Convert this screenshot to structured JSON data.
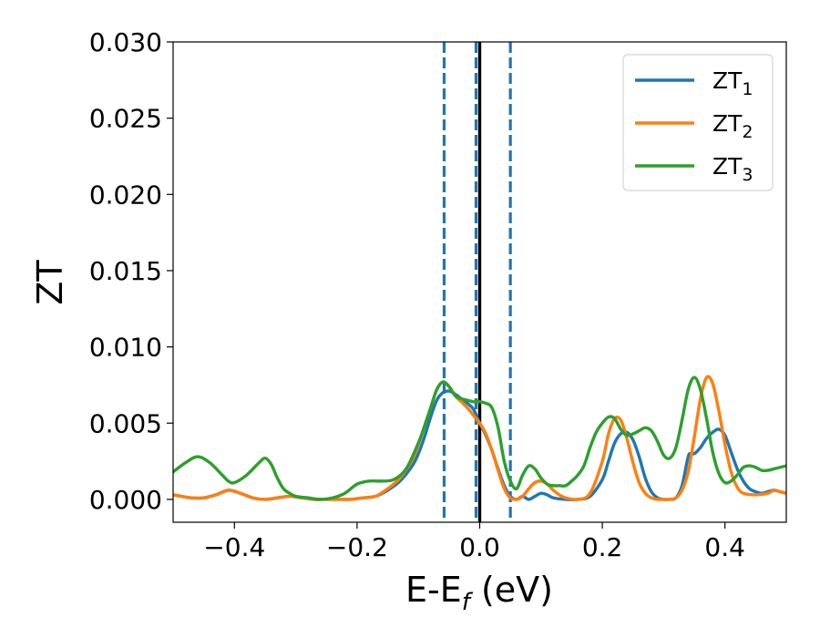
{
  "chart_data": {
    "type": "line",
    "xlabel_main": "E-E",
    "xlabel_sub": "f",
    "xlabel_unit": " (eV)",
    "ylabel": "ZT",
    "xlim": [
      -0.5,
      0.5
    ],
    "ylim": [
      -0.0015,
      0.03
    ],
    "grid": false,
    "legend_position": "top-right",
    "x_ticks": [
      -0.4,
      -0.2,
      0.0,
      0.2,
      0.4
    ],
    "x_tick_labels": [
      "−0.4",
      "−0.2",
      "0.0",
      "0.2",
      "0.4"
    ],
    "y_ticks": [
      0.0,
      0.005,
      0.01,
      0.015,
      0.02,
      0.025,
      0.03
    ],
    "y_tick_labels": [
      "0.000",
      "0.005",
      "0.010",
      "0.015",
      "0.020",
      "0.025",
      "0.030"
    ],
    "vertical_lines": [
      {
        "x": -0.058,
        "style": "dashed",
        "color": "#1f77b4"
      },
      {
        "x": -0.006,
        "style": "dashed",
        "color": "#1f77b4"
      },
      {
        "x": 0.0,
        "style": "solid",
        "color": "#000000"
      },
      {
        "x": 0.05,
        "style": "dashed",
        "color": "#1f77b4"
      }
    ],
    "series": [
      {
        "name": "ZT",
        "subscript": "1",
        "color": "#1f77b4",
        "points": [
          [
            -0.5,
            0.0003
          ],
          [
            -0.47,
            0.0001
          ],
          [
            -0.45,
            0.0001
          ],
          [
            -0.43,
            0.0003
          ],
          [
            -0.41,
            0.0006
          ],
          [
            -0.39,
            0.0004
          ],
          [
            -0.37,
            0.0001
          ],
          [
            -0.35,
            0.0
          ],
          [
            -0.33,
            0.0001
          ],
          [
            -0.31,
            0.0002
          ],
          [
            -0.29,
            0.0001
          ],
          [
            -0.27,
            0.0
          ],
          [
            -0.25,
            0.0
          ],
          [
            -0.23,
            0.0
          ],
          [
            -0.21,
            0.0
          ],
          [
            -0.19,
            0.0001
          ],
          [
            -0.17,
            0.0002
          ],
          [
            -0.15,
            0.0006
          ],
          [
            -0.13,
            0.0012
          ],
          [
            -0.11,
            0.0022
          ],
          [
            -0.1,
            0.003
          ],
          [
            -0.09,
            0.0041
          ],
          [
            -0.08,
            0.0054
          ],
          [
            -0.07,
            0.0065
          ],
          [
            -0.06,
            0.007
          ],
          [
            -0.05,
            0.0071
          ],
          [
            -0.04,
            0.0069
          ],
          [
            -0.03,
            0.0066
          ],
          [
            -0.02,
            0.0063
          ],
          [
            -0.01,
            0.0059
          ],
          [
            0.0,
            0.005
          ],
          [
            0.01,
            0.0042
          ],
          [
            0.02,
            0.0032
          ],
          [
            0.03,
            0.002
          ],
          [
            0.04,
            0.0009
          ],
          [
            0.05,
            0.0002
          ],
          [
            0.06,
            0.0
          ],
          [
            0.07,
            0.0002
          ],
          [
            0.08,
            0.0
          ],
          [
            0.09,
            0.0002
          ],
          [
            0.1,
            0.0004
          ],
          [
            0.11,
            0.0003
          ],
          [
            0.12,
            0.0001
          ],
          [
            0.14,
            0.0
          ],
          [
            0.16,
            0.0
          ],
          [
            0.18,
            0.0002
          ],
          [
            0.2,
            0.0013
          ],
          [
            0.21,
            0.0025
          ],
          [
            0.22,
            0.0037
          ],
          [
            0.23,
            0.0043
          ],
          [
            0.24,
            0.0044
          ],
          [
            0.25,
            0.0039
          ],
          [
            0.26,
            0.0028
          ],
          [
            0.27,
            0.0014
          ],
          [
            0.28,
            0.0005
          ],
          [
            0.29,
            0.0001
          ],
          [
            0.3,
            0.0
          ],
          [
            0.31,
            0.0
          ],
          [
            0.32,
            0.0001
          ],
          [
            0.33,
            0.0009
          ],
          [
            0.34,
            0.0028
          ],
          [
            0.345,
            0.003
          ],
          [
            0.35,
            0.003
          ],
          [
            0.36,
            0.0034
          ],
          [
            0.37,
            0.004
          ],
          [
            0.38,
            0.0044
          ],
          [
            0.39,
            0.0046
          ],
          [
            0.4,
            0.0042
          ],
          [
            0.41,
            0.0031
          ],
          [
            0.42,
            0.002
          ],
          [
            0.43,
            0.0012
          ],
          [
            0.44,
            0.0007
          ],
          [
            0.45,
            0.0005
          ],
          [
            0.46,
            0.0004
          ],
          [
            0.47,
            0.0005
          ],
          [
            0.48,
            0.0006
          ],
          [
            0.49,
            0.0005
          ],
          [
            0.5,
            0.0004
          ]
        ]
      },
      {
        "name": "ZT",
        "subscript": "2",
        "color": "#ff7f0e",
        "points": [
          [
            -0.5,
            0.0003
          ],
          [
            -0.47,
            0.0001
          ],
          [
            -0.45,
            0.0001
          ],
          [
            -0.43,
            0.0003
          ],
          [
            -0.41,
            0.0006
          ],
          [
            -0.39,
            0.0004
          ],
          [
            -0.37,
            0.0001
          ],
          [
            -0.35,
            0.0
          ],
          [
            -0.33,
            0.0001
          ],
          [
            -0.31,
            0.0002
          ],
          [
            -0.29,
            0.0001
          ],
          [
            -0.27,
            0.0
          ],
          [
            -0.25,
            0.0
          ],
          [
            -0.23,
            0.0
          ],
          [
            -0.21,
            0.0
          ],
          [
            -0.19,
            0.0001
          ],
          [
            -0.17,
            0.0002
          ],
          [
            -0.15,
            0.0007
          ],
          [
            -0.13,
            0.0014
          ],
          [
            -0.11,
            0.0026
          ],
          [
            -0.1,
            0.0036
          ],
          [
            -0.09,
            0.0048
          ],
          [
            -0.08,
            0.006
          ],
          [
            -0.07,
            0.0072
          ],
          [
            -0.06,
            0.0077
          ],
          [
            -0.05,
            0.0074
          ],
          [
            -0.04,
            0.0068
          ],
          [
            -0.03,
            0.0064
          ],
          [
            -0.02,
            0.006
          ],
          [
            -0.01,
            0.0055
          ],
          [
            0.0,
            0.005
          ],
          [
            0.01,
            0.0043
          ],
          [
            0.02,
            0.0032
          ],
          [
            0.03,
            0.0019
          ],
          [
            0.04,
            0.0007
          ],
          [
            0.05,
            0.0001
          ],
          [
            0.06,
            0.0
          ],
          [
            0.07,
            0.0002
          ],
          [
            0.08,
            0.0007
          ],
          [
            0.09,
            0.0011
          ],
          [
            0.1,
            0.0012
          ],
          [
            0.11,
            0.001
          ],
          [
            0.12,
            0.0006
          ],
          [
            0.13,
            0.0003
          ],
          [
            0.14,
            0.0001
          ],
          [
            0.16,
            0.0
          ],
          [
            0.18,
            0.0004
          ],
          [
            0.2,
            0.0025
          ],
          [
            0.21,
            0.0043
          ],
          [
            0.22,
            0.0053
          ],
          [
            0.23,
            0.0052
          ],
          [
            0.24,
            0.004
          ],
          [
            0.25,
            0.0024
          ],
          [
            0.26,
            0.0011
          ],
          [
            0.27,
            0.0004
          ],
          [
            0.28,
            0.0001
          ],
          [
            0.29,
            0.0
          ],
          [
            0.3,
            0.0
          ],
          [
            0.31,
            0.0
          ],
          [
            0.32,
            0.0001
          ],
          [
            0.33,
            0.0006
          ],
          [
            0.34,
            0.0018
          ],
          [
            0.35,
            0.0041
          ],
          [
            0.36,
            0.0066
          ],
          [
            0.37,
            0.008
          ],
          [
            0.38,
            0.0076
          ],
          [
            0.39,
            0.0058
          ],
          [
            0.4,
            0.0036
          ],
          [
            0.41,
            0.0018
          ],
          [
            0.42,
            0.0008
          ],
          [
            0.43,
            0.0004
          ],
          [
            0.45,
            0.0003
          ],
          [
            0.47,
            0.0004
          ],
          [
            0.48,
            0.0006
          ],
          [
            0.49,
            0.0005
          ],
          [
            0.5,
            0.0004
          ]
        ]
      },
      {
        "name": "ZT",
        "subscript": "3",
        "color": "#2ca02c",
        "points": [
          [
            -0.5,
            0.0018
          ],
          [
            -0.48,
            0.0024
          ],
          [
            -0.46,
            0.0028
          ],
          [
            -0.44,
            0.0024
          ],
          [
            -0.42,
            0.0016
          ],
          [
            -0.41,
            0.0012
          ],
          [
            -0.4,
            0.0011
          ],
          [
            -0.38,
            0.0016
          ],
          [
            -0.36,
            0.0024
          ],
          [
            -0.35,
            0.0027
          ],
          [
            -0.34,
            0.0023
          ],
          [
            -0.33,
            0.0014
          ],
          [
            -0.32,
            0.0007
          ],
          [
            -0.31,
            0.0004
          ],
          [
            -0.3,
            0.0002
          ],
          [
            -0.28,
            0.0001
          ],
          [
            -0.26,
            0.0
          ],
          [
            -0.24,
            0.0001
          ],
          [
            -0.22,
            0.0004
          ],
          [
            -0.2,
            0.001
          ],
          [
            -0.18,
            0.0012
          ],
          [
            -0.16,
            0.0012
          ],
          [
            -0.14,
            0.0013
          ],
          [
            -0.12,
            0.002
          ],
          [
            -0.1,
            0.0037
          ],
          [
            -0.09,
            0.0048
          ],
          [
            -0.08,
            0.006
          ],
          [
            -0.07,
            0.0072
          ],
          [
            -0.06,
            0.0077
          ],
          [
            -0.05,
            0.0074
          ],
          [
            -0.04,
            0.0068
          ],
          [
            -0.03,
            0.0066
          ],
          [
            -0.02,
            0.0065
          ],
          [
            -0.01,
            0.0064
          ],
          [
            0.0,
            0.0064
          ],
          [
            0.01,
            0.0063
          ],
          [
            0.02,
            0.006
          ],
          [
            0.03,
            0.0047
          ],
          [
            0.04,
            0.0025
          ],
          [
            0.05,
            0.0012
          ],
          [
            0.06,
            0.0007
          ],
          [
            0.07,
            0.0016
          ],
          [
            0.08,
            0.0022
          ],
          [
            0.09,
            0.002
          ],
          [
            0.1,
            0.0014
          ],
          [
            0.11,
            0.001
          ],
          [
            0.12,
            0.0009
          ],
          [
            0.13,
            0.0009
          ],
          [
            0.14,
            0.0009
          ],
          [
            0.15,
            0.0012
          ],
          [
            0.16,
            0.0016
          ],
          [
            0.17,
            0.0022
          ],
          [
            0.18,
            0.0034
          ],
          [
            0.19,
            0.0044
          ],
          [
            0.2,
            0.005
          ],
          [
            0.21,
            0.0054
          ],
          [
            0.22,
            0.0053
          ],
          [
            0.23,
            0.0046
          ],
          [
            0.24,
            0.0042
          ],
          [
            0.25,
            0.0043
          ],
          [
            0.26,
            0.0045
          ],
          [
            0.27,
            0.0047
          ],
          [
            0.28,
            0.0045
          ],
          [
            0.29,
            0.0038
          ],
          [
            0.3,
            0.0029
          ],
          [
            0.31,
            0.0027
          ],
          [
            0.32,
            0.0034
          ],
          [
            0.33,
            0.0052
          ],
          [
            0.34,
            0.0072
          ],
          [
            0.35,
            0.008
          ],
          [
            0.36,
            0.0072
          ],
          [
            0.37,
            0.0053
          ],
          [
            0.38,
            0.0031
          ],
          [
            0.39,
            0.0017
          ],
          [
            0.4,
            0.0011
          ],
          [
            0.41,
            0.0012
          ],
          [
            0.42,
            0.0016
          ],
          [
            0.43,
            0.0021
          ],
          [
            0.44,
            0.0022
          ],
          [
            0.45,
            0.0021
          ],
          [
            0.46,
            0.0019
          ],
          [
            0.47,
            0.0019
          ],
          [
            0.48,
            0.002
          ],
          [
            0.49,
            0.0021
          ],
          [
            0.5,
            0.0022
          ]
        ]
      }
    ]
  }
}
